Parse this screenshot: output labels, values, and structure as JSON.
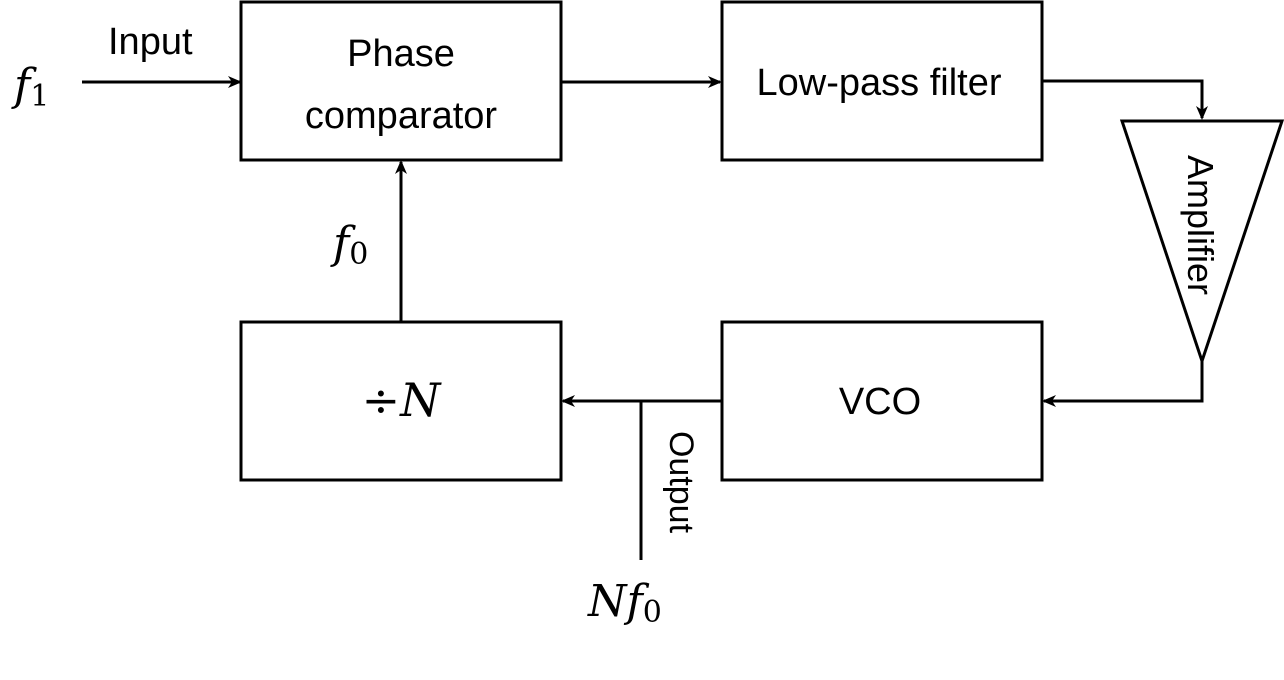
{
  "diagram": {
    "input_symbol": "f",
    "input_subscript": "1",
    "input_label": "Input",
    "phase_comparator_line1": "Phase",
    "phase_comparator_line2": "comparator",
    "low_pass_filter": "Low-pass filter",
    "amplifier": "Amplifier",
    "vco": "VCO",
    "divider_symbol": "÷",
    "divider_var": "N",
    "feedback_symbol": "f",
    "feedback_subscript": "0",
    "output_label": "Output",
    "output_N": "N",
    "output_f": "f",
    "output_subscript": "0"
  }
}
